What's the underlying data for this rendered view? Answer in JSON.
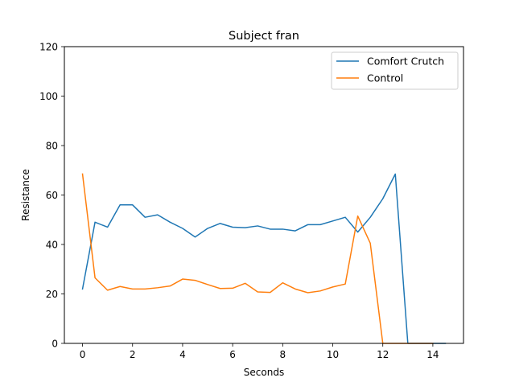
{
  "chart_data": {
    "type": "line",
    "title": "Subject fran",
    "xlabel": "Seconds",
    "ylabel": "Resistance",
    "xlim": [
      -0.725,
      15.225
    ],
    "ylim": [
      0,
      120
    ],
    "xticks": [
      0,
      2,
      4,
      6,
      8,
      10,
      12,
      14
    ],
    "yticks": [
      0,
      20,
      40,
      60,
      80,
      100,
      120
    ],
    "grid": false,
    "legend_position": "top-right",
    "x": [
      0,
      0.5,
      1,
      1.5,
      2,
      2.5,
      3,
      3.5,
      4,
      4.5,
      5,
      5.5,
      6,
      6.5,
      7,
      7.5,
      8,
      8.5,
      9,
      9.5,
      10,
      10.5,
      11,
      11.5,
      12,
      12.5,
      13,
      13.5,
      14,
      14.5
    ],
    "series": [
      {
        "name": "Comfort Crutch",
        "color": "#1f77b4",
        "values": [
          22,
          49,
          47,
          56,
          56,
          51,
          52,
          49,
          46.5,
          43,
          46.5,
          48.5,
          47,
          46.8,
          47.5,
          46.2,
          46.2,
          45.5,
          48,
          48,
          49.5,
          51,
          45,
          51,
          58.5,
          68.5,
          0,
          0,
          0,
          0
        ]
      },
      {
        "name": "Control",
        "color": "#ff7f0e",
        "values": [
          68.5,
          26.5,
          21.5,
          23,
          22,
          22,
          22.5,
          23.2,
          26,
          25.5,
          23.8,
          22.2,
          22.3,
          24.3,
          20.8,
          20.6,
          24.5,
          22,
          20.5,
          21.2,
          22.8,
          24,
          51.5,
          40.5,
          0,
          0,
          0,
          0,
          0,
          null
        ]
      }
    ]
  }
}
